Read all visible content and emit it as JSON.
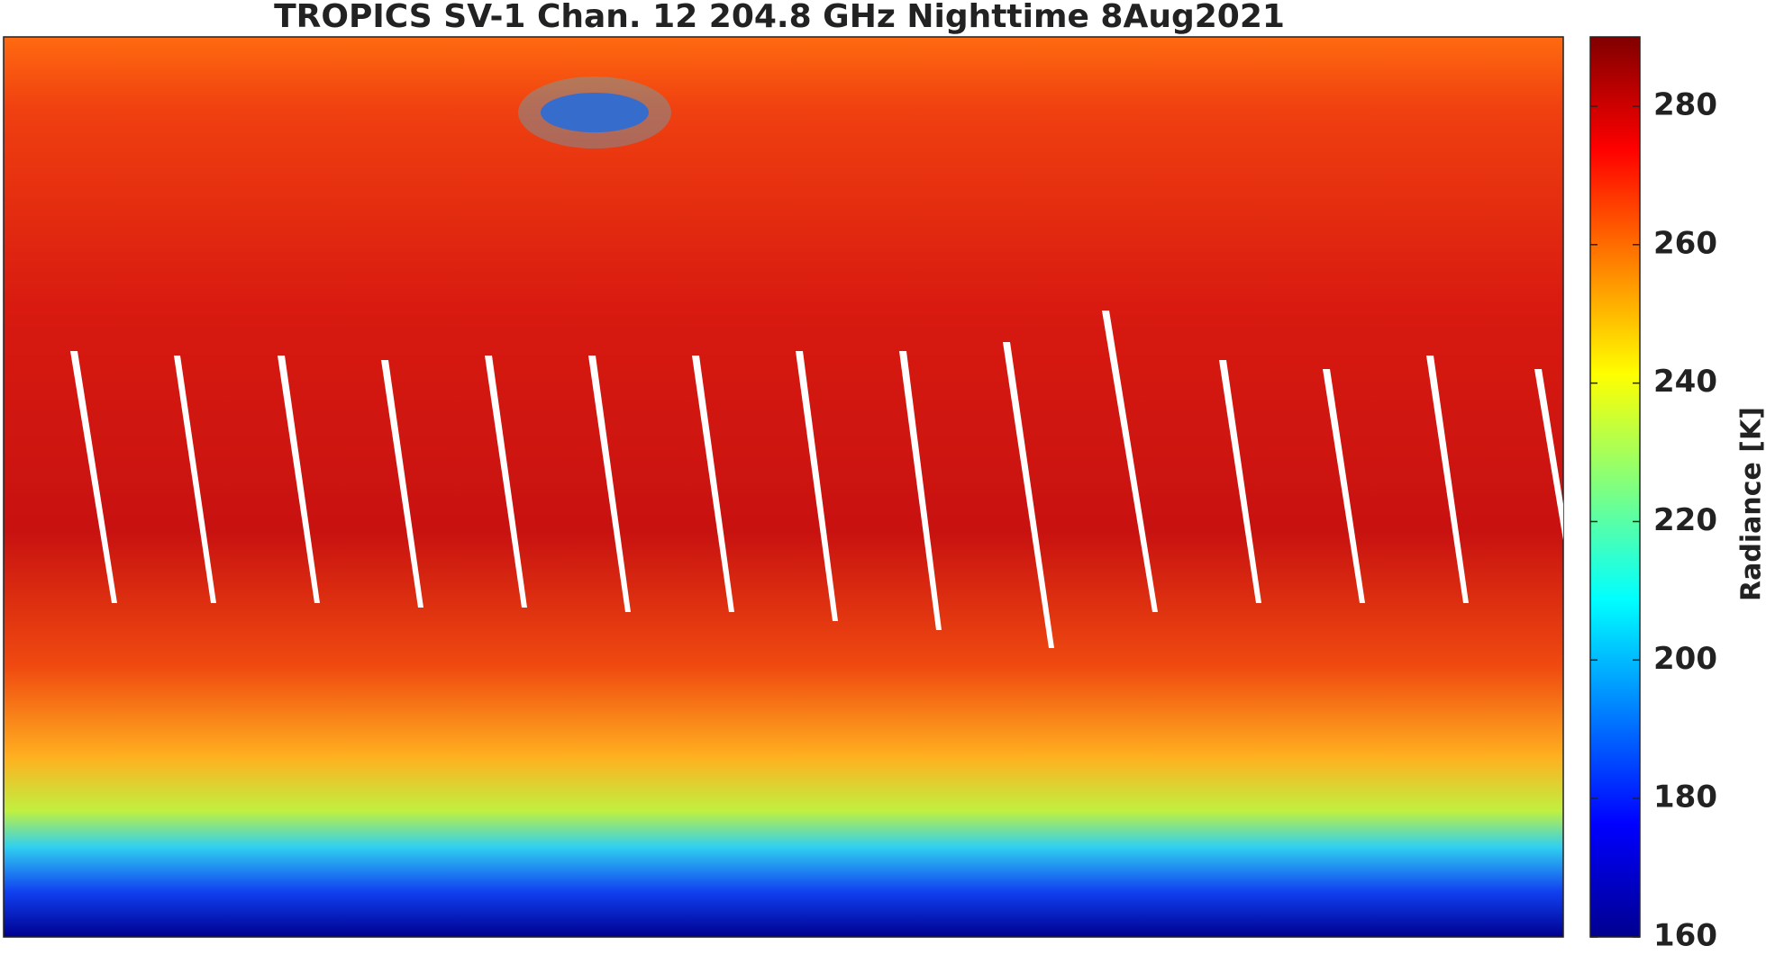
{
  "title": "TROPICS SV-1 Chan. 12 204.8 GHz Nighttime 8Aug2021",
  "colorbar": {
    "label": "Radiance [K]",
    "clim": [
      160,
      290
    ],
    "ticks": [
      160,
      180,
      200,
      220,
      240,
      260,
      280
    ],
    "colormap": "jet"
  }
}
